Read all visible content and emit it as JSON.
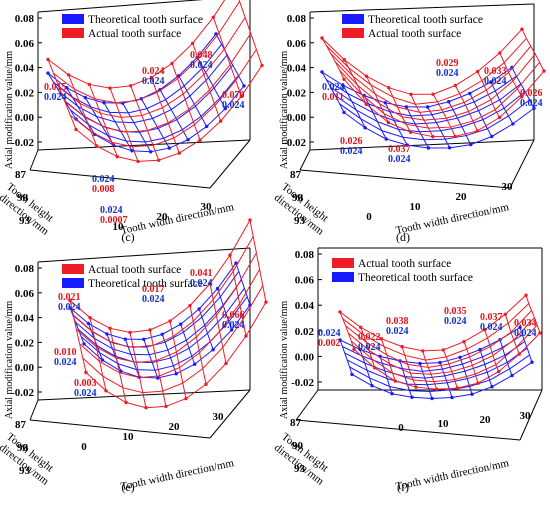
{
  "figure": {
    "legend_theoretical": "Theoretical tooth surface",
    "legend_actual": "Actual tooth surface",
    "ylabel": "Axial modification value/mm",
    "zlabel_line1": "Tooth height",
    "zlabel_line2": "direction/mm",
    "xlabel": "Tooth width direction/mm",
    "colors": {
      "actual": "#ee1c24",
      "theoretical": "#1a1aff",
      "label_red": "#e3121a",
      "label_blue": "#1230c8"
    }
  },
  "chart_data": [
    {
      "panel_label": "(c)",
      "type": "surface3d",
      "legend_order": [
        "theoretical",
        "actual"
      ],
      "yticks": [
        "-0.02",
        "0.00",
        "0.02",
        "0.04",
        "0.06",
        "0.08"
      ],
      "zticks": [
        "87",
        "90",
        "93"
      ],
      "xticks": [
        "10",
        "20",
        "30"
      ],
      "annotations": [
        {
          "series": "actual",
          "text": "0.015"
        },
        {
          "series": "theoretical",
          "text": "0.024"
        },
        {
          "series": "actual",
          "text": "0.024"
        },
        {
          "series": "theoretical",
          "text": "0.024"
        },
        {
          "series": "actual",
          "text": "0.048"
        },
        {
          "series": "theoretical",
          "text": "0.024"
        },
        {
          "series": "actual",
          "text": "0.070"
        },
        {
          "series": "theoretical",
          "text": "0.024"
        },
        {
          "series": "theoretical",
          "text": "0.024"
        },
        {
          "series": "actual",
          "text": "0.008"
        },
        {
          "series": "theoretical",
          "text": "0.024"
        },
        {
          "series": "actual",
          "text": "0.0007"
        }
      ]
    },
    {
      "panel_label": "(d)",
      "type": "surface3d",
      "legend_order": [
        "theoretical",
        "actual"
      ],
      "yticks": [
        "-0.02",
        "0.00",
        "0.02",
        "0.04",
        "0.06",
        "0.08"
      ],
      "zticks": [
        "87",
        "90",
        "93"
      ],
      "xticks": [
        "0",
        "10",
        "20",
        "30"
      ],
      "annotations": [
        {
          "series": "theoretical",
          "text": "0.024"
        },
        {
          "series": "actual",
          "text": "0.011"
        },
        {
          "series": "actual",
          "text": "0.029"
        },
        {
          "series": "theoretical",
          "text": "0.024"
        },
        {
          "series": "actual",
          "text": "0.033"
        },
        {
          "series": "theoretical",
          "text": "0.024"
        },
        {
          "series": "actual",
          "text": "0.026"
        },
        {
          "series": "theoretical",
          "text": "0.024"
        },
        {
          "series": "actual",
          "text": "0.026"
        },
        {
          "series": "theoretical",
          "text": "0.024"
        },
        {
          "series": "actual",
          "text": "0.037"
        },
        {
          "series": "theoretical",
          "text": "0.024"
        }
      ]
    },
    {
      "panel_label": "(e)",
      "type": "surface3d",
      "legend_order": [
        "actual",
        "theoretical"
      ],
      "yticks": [
        "-0.02",
        "0.00",
        "0.02",
        "0.04",
        "0.06",
        "0.08"
      ],
      "zticks": [
        "87",
        "90",
        "93"
      ],
      "xticks": [
        "0",
        "10",
        "20",
        "30"
      ],
      "annotations": [
        {
          "series": "actual",
          "text": "0.021"
        },
        {
          "series": "theoretical",
          "text": "0.024"
        },
        {
          "series": "actual",
          "text": "0.017"
        },
        {
          "series": "theoretical",
          "text": "0.024"
        },
        {
          "series": "actual",
          "text": "0.041"
        },
        {
          "series": "theoretical",
          "text": "0.024"
        },
        {
          "series": "actual",
          "text": "0.066"
        },
        {
          "series": "theoretical",
          "text": "0.024"
        },
        {
          "series": "actual",
          "text": "0.010"
        },
        {
          "series": "theoretical",
          "text": "0.024"
        },
        {
          "series": "actual",
          "text": "0.003"
        },
        {
          "series": "theoretical",
          "text": "0.024"
        }
      ]
    },
    {
      "panel_label": "(f)",
      "type": "surface3d",
      "legend_order": [
        "actual",
        "theoretical"
      ],
      "yticks": [
        "-0.02",
        "0.00",
        "0.02",
        "0.04",
        "0.06",
        "0.08"
      ],
      "zticks": [
        "87",
        "90",
        "93"
      ],
      "xticks": [
        "0",
        "10",
        "20",
        "30"
      ],
      "annotations": [
        {
          "series": "theoretical",
          "text": "0.024"
        },
        {
          "series": "actual",
          "text": "0.002"
        },
        {
          "series": "actual",
          "text": "0.022"
        },
        {
          "series": "theoretical",
          "text": "0.024"
        },
        {
          "series": "actual",
          "text": "0.038"
        },
        {
          "series": "theoretical",
          "text": "0.024"
        },
        {
          "series": "actual",
          "text": "0.035"
        },
        {
          "series": "theoretical",
          "text": "0.024"
        },
        {
          "series": "actual",
          "text": "0.037"
        },
        {
          "series": "theoretical",
          "text": "0.024"
        },
        {
          "series": "actual",
          "text": "0.034"
        },
        {
          "series": "theoretical",
          "text": "0.024"
        }
      ]
    }
  ]
}
